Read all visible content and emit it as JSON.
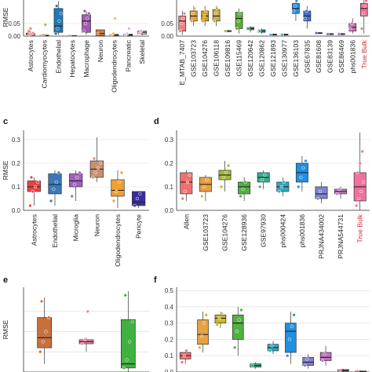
{
  "chart_data": [
    {
      "panel": "a",
      "type": "box",
      "ylabel": "RMSE",
      "ylim": [
        0,
        0.15
      ],
      "yticks": [
        0.0,
        0.05
      ],
      "y_tick_labels": [
        "0.00",
        "0.05"
      ],
      "grid": true,
      "categories": [
        "Astrocytes",
        "Cardiomyocytes",
        "Endothelial",
        "Hepatocytes",
        "Macrophage",
        "Neuron",
        "Oligodendrocytes",
        "Pancreatic",
        "Skeletal"
      ],
      "highlight_categories": [],
      "colors": [
        "#f08080",
        "#c8a06a",
        "#1f78b4",
        "#8cb0e0",
        "#a05ab4",
        "#d27a3c",
        "#e8c05a",
        "#c8b8e8",
        "#e8a8c8"
      ],
      "boxes": [
        {
          "min": 0,
          "q1": 0.003,
          "median": 0.008,
          "q3": 0.012,
          "max": 0.02,
          "points": [
            0.002,
            0.006,
            0.009,
            0.012,
            0.02,
            0.03
          ]
        },
        {
          "min": 0,
          "q1": 0.001,
          "median": 0.002,
          "q3": 0.004,
          "max": 0.005,
          "points": [
            0.002,
            0.004,
            0.045
          ]
        },
        {
          "min": 0.005,
          "q1": 0.015,
          "median": 0.04,
          "q3": 0.11,
          "max": 0.14,
          "points": [
            0.01,
            0.03,
            0.06,
            0.09,
            0.12
          ]
        },
        {
          "min": 0,
          "q1": 0.0,
          "median": 0.001,
          "q3": 0.002,
          "max": 0.002,
          "points": [
            0.001
          ]
        },
        {
          "min": 0.005,
          "q1": 0.015,
          "median": 0.06,
          "q3": 0.085,
          "max": 0.1,
          "points": [
            0.02,
            0.05,
            0.07,
            0.09,
            0.1
          ]
        },
        {
          "min": 0,
          "q1": 0.002,
          "median": 0.01,
          "q3": 0.025,
          "max": 0.025,
          "points": [
            0.01
          ]
        },
        {
          "min": 0,
          "q1": 0.002,
          "median": 0.004,
          "q3": 0.007,
          "max": 0.01,
          "points": [
            0.003,
            0.01,
            0.07
          ]
        },
        {
          "min": 0,
          "q1": 0.002,
          "median": 0.005,
          "q3": 0.008,
          "max": 0.012,
          "points": [
            0.004,
            0.009,
            0.03
          ]
        },
        {
          "min": 0.003,
          "q1": 0.008,
          "median": 0.015,
          "q3": 0.02,
          "max": 0.02,
          "points": [
            0.012,
            0.02
          ]
        }
      ]
    },
    {
      "panel": "b",
      "type": "box",
      "ylabel": "",
      "ylim": [
        0,
        0.15
      ],
      "yticks": [
        0.0,
        0.05
      ],
      "y_tick_labels": [
        "0.00",
        "0.05"
      ],
      "grid": true,
      "categories": [
        "E_MTAB_7407",
        "GSE103723",
        "GSE104276",
        "GSE106118",
        "GSE109816",
        "GSE115469",
        "GSE120642",
        "GSE120862",
        "GSE121893",
        "GSE130977",
        "GSE136103",
        "GSE67835",
        "GSE81608",
        "GSE83139",
        "GSE86469",
        "phs001836",
        "True Bulk"
      ],
      "highlight_categories": [
        "True Bulk"
      ],
      "colors": [
        "#f08080",
        "#e8a040",
        "#d4a020",
        "#c8b040",
        "#b0c050",
        "#58b030",
        "#30a860",
        "#30b0a0",
        "#30b0c0",
        "#40a0d0",
        "#2090e0",
        "#4070d0",
        "#7060c0",
        "#9070c0",
        "#b070c0",
        "#d070b0",
        "#f07090"
      ],
      "boxes": [
        {
          "min": 0.005,
          "q1": 0.02,
          "median": 0.06,
          "q3": 0.08,
          "max": 0.1,
          "points": [
            0.02,
            0.05,
            0.07,
            0.09
          ]
        },
        {
          "min": 0.04,
          "q1": 0.06,
          "median": 0.08,
          "q3": 0.1,
          "max": 0.12,
          "points": [
            0.06,
            0.09,
            0.11
          ]
        },
        {
          "min": 0.04,
          "q1": 0.06,
          "median": 0.08,
          "q3": 0.1,
          "max": 0.12,
          "points": [
            0.06,
            0.08,
            0.1
          ]
        },
        {
          "min": 0.04,
          "q1": 0.06,
          "median": 0.08,
          "q3": 0.105,
          "max": 0.12,
          "points": [
            0.06,
            0.09,
            0.11
          ]
        },
        {
          "min": 0.015,
          "q1": 0.018,
          "median": 0.02,
          "q3": 0.022,
          "max": 0.025,
          "points": [
            0.02
          ]
        },
        {
          "min": 0.01,
          "q1": 0.03,
          "median": 0.07,
          "q3": 0.095,
          "max": 0.11,
          "points": [
            0.03,
            0.06,
            0.09
          ]
        },
        {
          "min": 0.015,
          "q1": 0.025,
          "median": 0.03,
          "q3": 0.035,
          "max": 0.04,
          "points": [
            0.03
          ]
        },
        {
          "min": 0.01,
          "q1": 0.015,
          "median": 0.02,
          "q3": 0.025,
          "max": 0.03,
          "points": [
            0.02
          ]
        },
        {
          "min": 0.002,
          "q1": 0.004,
          "median": 0.006,
          "q3": 0.008,
          "max": 0.01,
          "points": [
            0.005
          ]
        },
        {
          "min": 0.002,
          "q1": 0.004,
          "median": 0.006,
          "q3": 0.008,
          "max": 0.01,
          "points": [
            0.005
          ]
        },
        {
          "min": 0.06,
          "q1": 0.09,
          "median": 0.11,
          "q3": 0.13,
          "max": 0.15,
          "points": [
            0.1,
            0.12,
            0.14
          ]
        },
        {
          "min": 0.03,
          "q1": 0.06,
          "median": 0.08,
          "q3": 0.1,
          "max": 0.12,
          "points": [
            0.07,
            0.1
          ]
        },
        {
          "min": 0.008,
          "q1": 0.01,
          "median": 0.012,
          "q3": 0.014,
          "max": 0.016,
          "points": [
            0.012
          ]
        },
        {
          "min": 0.004,
          "q1": 0.006,
          "median": 0.008,
          "q3": 0.01,
          "max": 0.012,
          "points": [
            0.008
          ]
        },
        {
          "min": 0.004,
          "q1": 0.006,
          "median": 0.008,
          "q3": 0.01,
          "max": 0.012,
          "points": [
            0.008
          ]
        },
        {
          "min": 0.01,
          "q1": 0.02,
          "median": 0.035,
          "q3": 0.05,
          "max": 0.07,
          "points": [
            0.03,
            0.05
          ]
        },
        {
          "min": 0.01,
          "q1": 0.08,
          "median": 0.11,
          "q3": 0.13,
          "max": 0.15,
          "points": [
            0.03,
            0.09,
            0.12,
            0.14
          ]
        }
      ]
    },
    {
      "panel": "c",
      "type": "box",
      "ylabel": "RMSE",
      "ylim": [
        0,
        0.34
      ],
      "yticks": [
        0.0,
        0.1,
        0.2,
        0.3
      ],
      "y_tick_labels": [
        "0.0",
        "0.1",
        "0.2",
        "0.3"
      ],
      "grid": true,
      "categories": [
        "Astrocytes",
        "Endothelial",
        "Microglia",
        "Neuron",
        "Oligodendrocytes",
        "Pericyte"
      ],
      "highlight_categories": [],
      "colors": [
        "#f04040",
        "#3a78b8",
        "#a060c0",
        "#c89070",
        "#f0a030",
        "#3a2ca0"
      ],
      "boxes": [
        {
          "min": 0.02,
          "q1": 0.08,
          "median": 0.1,
          "q3": 0.125,
          "max": 0.14,
          "points": [
            0.02,
            0.08,
            0.1,
            0.12,
            0.14
          ]
        },
        {
          "min": 0.02,
          "q1": 0.07,
          "median": 0.11,
          "q3": 0.155,
          "max": 0.17,
          "points": [
            0.04,
            0.09,
            0.12,
            0.16
          ]
        },
        {
          "min": 0.04,
          "q1": 0.1,
          "median": 0.125,
          "q3": 0.155,
          "max": 0.17,
          "points": [
            0.06,
            0.11,
            0.14,
            0.16
          ]
        },
        {
          "min": 0.12,
          "q1": 0.14,
          "median": 0.175,
          "q3": 0.21,
          "max": 0.31,
          "points": [
            0.14,
            0.16,
            0.18,
            0.2,
            0.22
          ]
        },
        {
          "min": 0.01,
          "q1": 0.06,
          "median": 0.085,
          "q3": 0.13,
          "max": 0.17,
          "points": [
            0.04,
            0.08,
            0.12,
            0.16
          ]
        },
        {
          "min": 0.01,
          "q1": 0.02,
          "median": 0.035,
          "q3": 0.08,
          "max": 0.08,
          "points": [
            0.02,
            0.05,
            0.07
          ]
        }
      ]
    },
    {
      "panel": "d",
      "type": "box",
      "ylabel": "",
      "ylim": [
        0,
        0.34
      ],
      "yticks": [
        0.0,
        0.1,
        0.2,
        0.3
      ],
      "y_tick_labels": [
        "0.0",
        "0.1",
        "0.2",
        "0.3"
      ],
      "grid": true,
      "categories": [
        "Allen",
        "GSE103723",
        "GSE104276",
        "GSE128936",
        "GSE97930",
        "phs000424",
        "phs001836",
        "PRJNA434002",
        "PRJNA544731",
        "True Bulk"
      ],
      "highlight_categories": [
        "True Bulk"
      ],
      "colors": [
        "#f07070",
        "#e8a040",
        "#a8b830",
        "#50b040",
        "#30b090",
        "#30a8c0",
        "#2090e0",
        "#8080d0",
        "#c080c0",
        "#f070a0"
      ],
      "boxes": [
        {
          "min": 0.04,
          "q1": 0.07,
          "median": 0.12,
          "q3": 0.16,
          "max": 0.17,
          "points": [
            0.05,
            0.08,
            0.12,
            0.15
          ]
        },
        {
          "min": 0.04,
          "q1": 0.08,
          "median": 0.11,
          "q3": 0.14,
          "max": 0.15,
          "points": [
            0.06,
            0.1,
            0.13
          ]
        },
        {
          "min": 0.08,
          "q1": 0.13,
          "median": 0.15,
          "q3": 0.17,
          "max": 0.21,
          "points": [
            0.1,
            0.14,
            0.16,
            0.19
          ]
        },
        {
          "min": 0.04,
          "q1": 0.07,
          "median": 0.1,
          "q3": 0.12,
          "max": 0.14,
          "points": [
            0.06,
            0.09,
            0.12
          ]
        },
        {
          "min": 0.09,
          "q1": 0.12,
          "median": 0.14,
          "q3": 0.16,
          "max": 0.17,
          "points": [
            0.1,
            0.13,
            0.15
          ]
        },
        {
          "min": 0.06,
          "q1": 0.08,
          "median": 0.1,
          "q3": 0.12,
          "max": 0.14,
          "points": [
            0.08,
            0.1,
            0.12
          ]
        },
        {
          "min": 0.08,
          "q1": 0.12,
          "median": 0.16,
          "q3": 0.2,
          "max": 0.23,
          "points": [
            0.1,
            0.14,
            0.18,
            0.21
          ]
        },
        {
          "min": 0.03,
          "q1": 0.05,
          "median": 0.07,
          "q3": 0.1,
          "max": 0.12,
          "points": [
            0.05,
            0.08
          ]
        },
        {
          "min": 0.05,
          "q1": 0.07,
          "median": 0.08,
          "q3": 0.09,
          "max": 0.1,
          "points": [
            0.07,
            0.09
          ]
        },
        {
          "min": 0.0,
          "q1": 0.04,
          "median": 0.1,
          "q3": 0.16,
          "max": 0.33,
          "points": [
            0.02,
            0.05,
            0.08,
            0.12,
            0.16,
            0.2,
            0.25
          ]
        }
      ]
    },
    {
      "panel": "e",
      "type": "box",
      "ylabel": "RMSE",
      "ylim": [
        0,
        0.42
      ],
      "yticks": [
        0.1,
        0.2,
        0.3
      ],
      "y_tick_labels": [
        "",
        "",
        ""
      ],
      "grid": true,
      "categories": [
        "",
        "",
        ""
      ],
      "highlight_categories": [],
      "colors": [
        "#c8703c",
        "#f080a8",
        "#40b040"
      ],
      "boxes": [
        {
          "min": 0.04,
          "q1": 0.12,
          "median": 0.17,
          "q3": 0.27,
          "max": 0.37,
          "points": [
            0.1,
            0.15,
            0.2,
            0.27,
            0.35
          ]
        },
        {
          "min": 0.1,
          "q1": 0.14,
          "median": 0.15,
          "q3": 0.16,
          "max": 0.17,
          "points": [
            0.14,
            0.16,
            0.3
          ]
        },
        {
          "min": 0.0,
          "q1": 0.02,
          "median": 0.04,
          "q3": 0.26,
          "max": 0.4,
          "points": [
            0.02,
            0.06,
            0.15,
            0.25,
            0.38
          ]
        }
      ]
    },
    {
      "panel": "f",
      "type": "box",
      "ylabel": "",
      "ylim": [
        0,
        0.52
      ],
      "yticks": [
        0.0,
        0.1,
        0.2,
        0.3,
        0.4,
        0.5
      ],
      "y_tick_labels": [
        "0.0",
        "0.1",
        "0.2",
        "0.3",
        "0.4",
        "0.5"
      ],
      "grid": true,
      "categories": [
        "",
        "",
        "",
        "",
        "",
        "",
        "",
        "",
        "",
        "",
        ""
      ],
      "highlight_categories": [],
      "colors": [
        "#f07070",
        "#e8a040",
        "#c8b830",
        "#50b040",
        "#30b090",
        "#30a8c0",
        "#2090e0",
        "#8080d0",
        "#c070c0",
        "#f070a0",
        "#f07090"
      ],
      "boxes": [
        {
          "min": 0.05,
          "q1": 0.08,
          "median": 0.1,
          "q3": 0.12,
          "max": 0.14,
          "points": [
            0.06,
            0.1,
            0.13
          ]
        },
        {
          "min": 0.12,
          "q1": 0.17,
          "median": 0.23,
          "q3": 0.32,
          "max": 0.37,
          "points": [
            0.15,
            0.22,
            0.3,
            0.35
          ]
        },
        {
          "min": 0.27,
          "q1": 0.3,
          "median": 0.33,
          "q3": 0.35,
          "max": 0.37,
          "points": [
            0.29,
            0.33,
            0.36
          ]
        },
        {
          "min": 0.1,
          "q1": 0.2,
          "median": 0.3,
          "q3": 0.35,
          "max": 0.4,
          "points": [
            0.15,
            0.25,
            0.32,
            0.38
          ]
        },
        {
          "min": 0.02,
          "q1": 0.03,
          "median": 0.04,
          "q3": 0.05,
          "max": 0.06,
          "points": [
            0.04
          ]
        },
        {
          "min": 0.11,
          "q1": 0.13,
          "median": 0.15,
          "q3": 0.17,
          "max": 0.19,
          "points": [
            0.13,
            0.16
          ]
        },
        {
          "min": 0.05,
          "q1": 0.12,
          "median": 0.25,
          "q3": 0.3,
          "max": 0.37,
          "points": [
            0.1,
            0.2,
            0.28,
            0.35
          ]
        },
        {
          "min": 0.02,
          "q1": 0.04,
          "median": 0.06,
          "q3": 0.09,
          "max": 0.11,
          "points": [
            0.04,
            0.08
          ]
        },
        {
          "min": 0.04,
          "q1": 0.07,
          "median": 0.09,
          "q3": 0.12,
          "max": 0.16,
          "points": [
            0.07,
            0.11
          ]
        },
        {
          "min": 0.0,
          "q1": 0.005,
          "median": 0.01,
          "q3": 0.015,
          "max": 0.02,
          "points": [
            0.01
          ]
        },
        {
          "min": 0.0,
          "q1": 0.002,
          "median": 0.004,
          "q3": 0.006,
          "max": 0.008,
          "points": [
            0.004
          ]
        }
      ]
    }
  ]
}
